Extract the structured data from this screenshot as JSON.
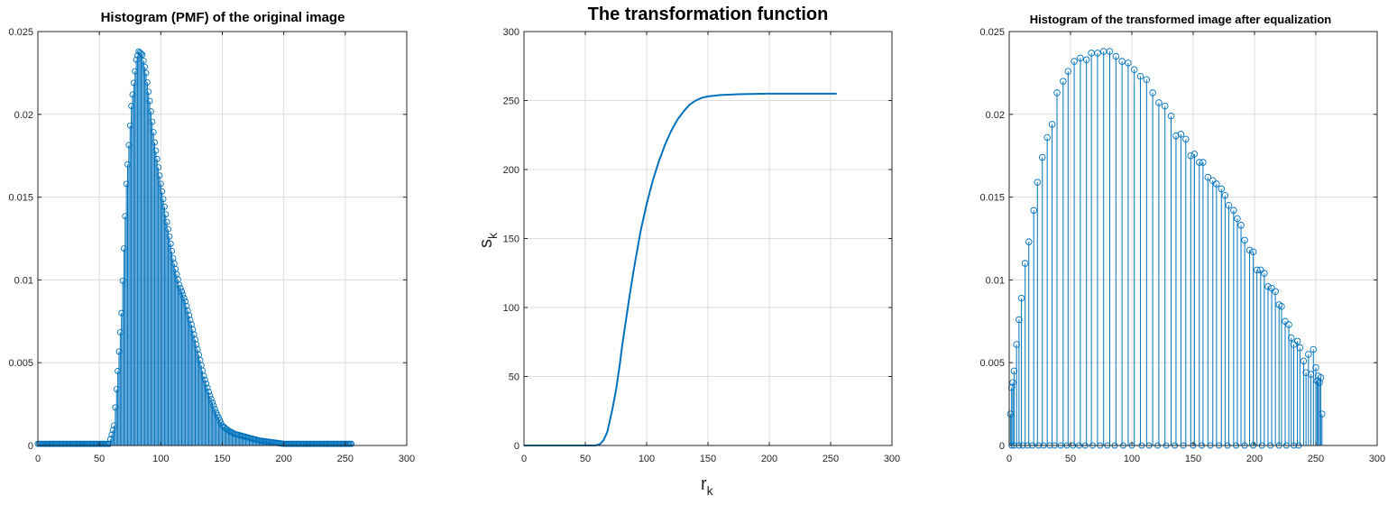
{
  "chart_data": [
    {
      "type": "stem",
      "title": "Histogram (PMF) of the original image",
      "xlabel": "",
      "ylabel": "",
      "xlim": [
        0,
        300
      ],
      "ylim": [
        0,
        0.025
      ],
      "xticks": [
        0,
        50,
        100,
        150,
        200,
        250,
        300
      ],
      "yticks": [
        0,
        0.005,
        0.01,
        0.015,
        0.02,
        0.025
      ],
      "ytick_labels": [
        "0",
        "0.005",
        "0.01",
        "0.015",
        "0.02",
        "0.025"
      ],
      "grid": true,
      "color": "#0072BD",
      "peak_x": 82,
      "peak_value": 0.0238,
      "support": [
        0,
        255
      ],
      "keypoints": [
        [
          0,
          0.0001
        ],
        [
          58,
          0.0001
        ],
        [
          62,
          0.0012
        ],
        [
          65,
          0.0045
        ],
        [
          68,
          0.008
        ],
        [
          72,
          0.0158
        ],
        [
          76,
          0.0205
        ],
        [
          80,
          0.0233
        ],
        [
          82,
          0.0238
        ],
        [
          85,
          0.0236
        ],
        [
          88,
          0.0225
        ],
        [
          91,
          0.0208
        ],
        [
          95,
          0.0183
        ],
        [
          100,
          0.0158
        ],
        [
          105,
          0.0135
        ],
        [
          110,
          0.0113
        ],
        [
          115,
          0.0097
        ],
        [
          120,
          0.0087
        ],
        [
          125,
          0.0073
        ],
        [
          130,
          0.0058
        ],
        [
          135,
          0.0042
        ],
        [
          140,
          0.003
        ],
        [
          145,
          0.002
        ],
        [
          150,
          0.0012
        ],
        [
          155,
          0.0009
        ],
        [
          160,
          0.0007
        ],
        [
          170,
          0.0005
        ],
        [
          180,
          0.0003
        ],
        [
          190,
          0.0002
        ],
        [
          200,
          0.0001
        ],
        [
          255,
          0.0001
        ]
      ]
    },
    {
      "type": "line",
      "title": "The transformation function",
      "xlabel": "r",
      "xlabel_sub": "k",
      "ylabel": "s",
      "ylabel_sub": "k",
      "xlim": [
        0,
        300
      ],
      "ylim": [
        0,
        300
      ],
      "xticks": [
        0,
        50,
        100,
        150,
        200,
        250,
        300
      ],
      "yticks": [
        0,
        50,
        100,
        150,
        200,
        250,
        300
      ],
      "grid": true,
      "color": "#0072BD",
      "keypoints": [
        [
          0,
          0
        ],
        [
          58,
          0
        ],
        [
          62,
          1
        ],
        [
          65,
          4
        ],
        [
          68,
          10
        ],
        [
          70,
          18
        ],
        [
          72,
          26
        ],
        [
          75,
          40
        ],
        [
          78,
          58
        ],
        [
          80,
          72
        ],
        [
          83,
          90
        ],
        [
          86,
          108
        ],
        [
          90,
          130
        ],
        [
          95,
          155
        ],
        [
          100,
          175
        ],
        [
          105,
          192
        ],
        [
          110,
          206
        ],
        [
          115,
          218
        ],
        [
          120,
          228
        ],
        [
          125,
          236
        ],
        [
          130,
          242
        ],
        [
          135,
          247
        ],
        [
          140,
          250
        ],
        [
          145,
          252
        ],
        [
          150,
          253
        ],
        [
          160,
          254
        ],
        [
          175,
          254.6
        ],
        [
          200,
          255
        ],
        [
          255,
          255
        ]
      ]
    },
    {
      "type": "stem",
      "title": "Histogram of the transformed image after equalization",
      "xlabel": "",
      "ylabel": "",
      "xlim": [
        0,
        300
      ],
      "ylim": [
        0,
        0.025
      ],
      "xticks": [
        0,
        50,
        100,
        150,
        200,
        250,
        300
      ],
      "yticks": [
        0,
        0.005,
        0.01,
        0.015,
        0.02,
        0.025
      ],
      "ytick_labels": [
        "0",
        "0.005",
        "0.01",
        "0.015",
        "0.02",
        "0.025"
      ],
      "grid": true,
      "color": "#0072BD",
      "x": [
        1,
        2,
        3,
        4,
        6,
        8,
        10,
        13,
        16,
        20,
        23,
        27,
        31,
        35,
        39,
        44,
        48,
        53,
        58,
        63,
        67,
        72,
        77,
        82,
        87,
        92,
        97,
        102,
        107,
        112,
        117,
        122,
        127,
        132,
        136,
        140,
        144,
        148,
        151,
        155,
        158,
        162,
        166,
        169,
        173,
        176,
        179,
        183,
        186,
        189,
        192,
        196,
        199,
        202,
        205,
        208,
        211,
        214,
        217,
        220,
        222,
        225,
        228,
        230,
        232,
        235,
        237,
        240,
        242,
        244,
        246,
        248,
        250,
        251,
        252,
        253,
        254,
        255
      ],
      "y": [
        0.0019,
        0.0035,
        0.0038,
        0.0045,
        0.0061,
        0.0076,
        0.0089,
        0.011,
        0.0123,
        0.0142,
        0.0159,
        0.0174,
        0.0186,
        0.0194,
        0.0213,
        0.022,
        0.0226,
        0.0232,
        0.0234,
        0.0233,
        0.0237,
        0.0237,
        0.0238,
        0.0238,
        0.0235,
        0.0232,
        0.0231,
        0.0227,
        0.0223,
        0.0221,
        0.0213,
        0.0207,
        0.0205,
        0.0199,
        0.0187,
        0.0188,
        0.0185,
        0.0175,
        0.0176,
        0.0171,
        0.0171,
        0.0162,
        0.016,
        0.0158,
        0.0155,
        0.0151,
        0.0145,
        0.0142,
        0.0137,
        0.0133,
        0.0124,
        0.0118,
        0.0117,
        0.0106,
        0.0106,
        0.0104,
        0.0096,
        0.0095,
        0.0093,
        0.0085,
        0.0084,
        0.0075,
        0.0073,
        0.0065,
        0.0061,
        0.0063,
        0.0059,
        0.0051,
        0.0044,
        0.0055,
        0.0043,
        0.0058,
        0.0047,
        0.0039,
        0.0042,
        0.0038,
        0.0041,
        0.0019
      ],
      "zero_markers_x": [
        2,
        4,
        8,
        11,
        15,
        19,
        24,
        28,
        33,
        37,
        42,
        47,
        52,
        57,
        62,
        68,
        74,
        80,
        86,
        93,
        100,
        108,
        114,
        121,
        128,
        135,
        142,
        150,
        157,
        164,
        171,
        178,
        185,
        192,
        199,
        206,
        213,
        220,
        226,
        232,
        236
      ]
    }
  ]
}
